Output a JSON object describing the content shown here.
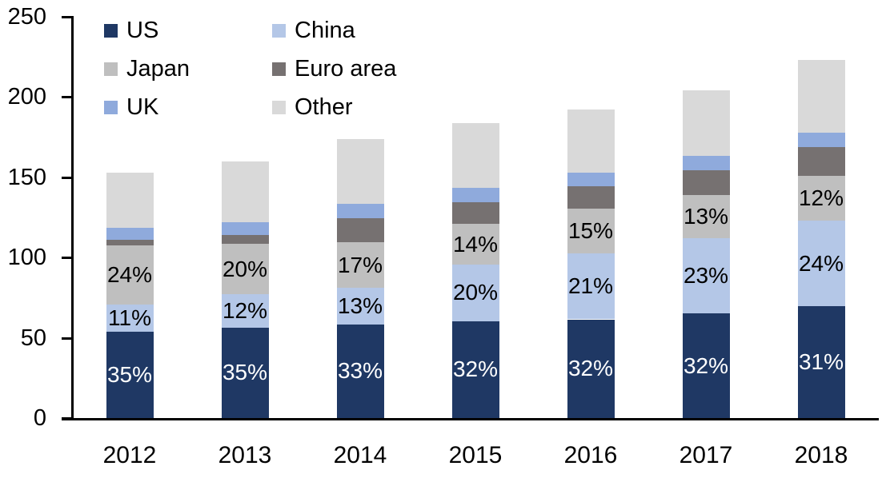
{
  "chart_data": {
    "type": "bar",
    "stacked": true,
    "title": "",
    "xlabel": "",
    "ylabel": "",
    "grid": false,
    "background_color": "#FFFFFF",
    "axis_color": "#000000",
    "categories": [
      "2012",
      "2013",
      "2014",
      "2015",
      "2016",
      "2017",
      "2018"
    ],
    "y_axis": {
      "min": 0,
      "max": 250,
      "step": 50,
      "tick_labels": [
        "0",
        "50",
        "100",
        "150",
        "200",
        "250"
      ]
    },
    "legend": {
      "position": "top-left",
      "columns": 2,
      "entries": [
        "US",
        "China",
        "Japan",
        "Euro area",
        "UK",
        "Other"
      ]
    },
    "series": [
      {
        "name": "US",
        "color": "#1F3864",
        "label_color": "#FFFFFF",
        "values": [
          54,
          56.5,
          58.5,
          60.5,
          61.5,
          65,
          69.5
        ],
        "labels": [
          "35%",
          "35%",
          "33%",
          "32%",
          "32%",
          "32%",
          "31%"
        ]
      },
      {
        "name": "China",
        "color": "#B4C7E7",
        "label_color": "#000000",
        "values": [
          16.5,
          20.5,
          22.5,
          35,
          41,
          47,
          53.5
        ],
        "labels": [
          "11%",
          "12%",
          "13%",
          "20%",
          "21%",
          "23%",
          "24%"
        ]
      },
      {
        "name": "Japan",
        "color": "#BFBFBF",
        "label_color": "#000000",
        "values": [
          37,
          31.5,
          28.5,
          25.5,
          28,
          27,
          28
        ],
        "labels": [
          "24%",
          "20%",
          "17%",
          "14%",
          "15%",
          "13%",
          "12%"
        ]
      },
      {
        "name": "Euro area",
        "color": "#767171",
        "label_color": null,
        "values": [
          3.5,
          5.5,
          15,
          13.5,
          14,
          15.5,
          18
        ],
        "labels": null
      },
      {
        "name": "UK",
        "color": "#8FAADC",
        "label_color": null,
        "values": [
          7.5,
          8,
          9,
          9,
          8.5,
          9,
          9
        ],
        "labels": null
      },
      {
        "name": "Other",
        "color": "#D9D9D9",
        "label_color": null,
        "values": [
          34.5,
          38,
          40.5,
          40.5,
          39,
          40.5,
          45
        ],
        "labels": null
      }
    ],
    "approx_bar_totals": [
      153,
      160,
      174,
      184,
      192,
      204,
      223
    ]
  }
}
